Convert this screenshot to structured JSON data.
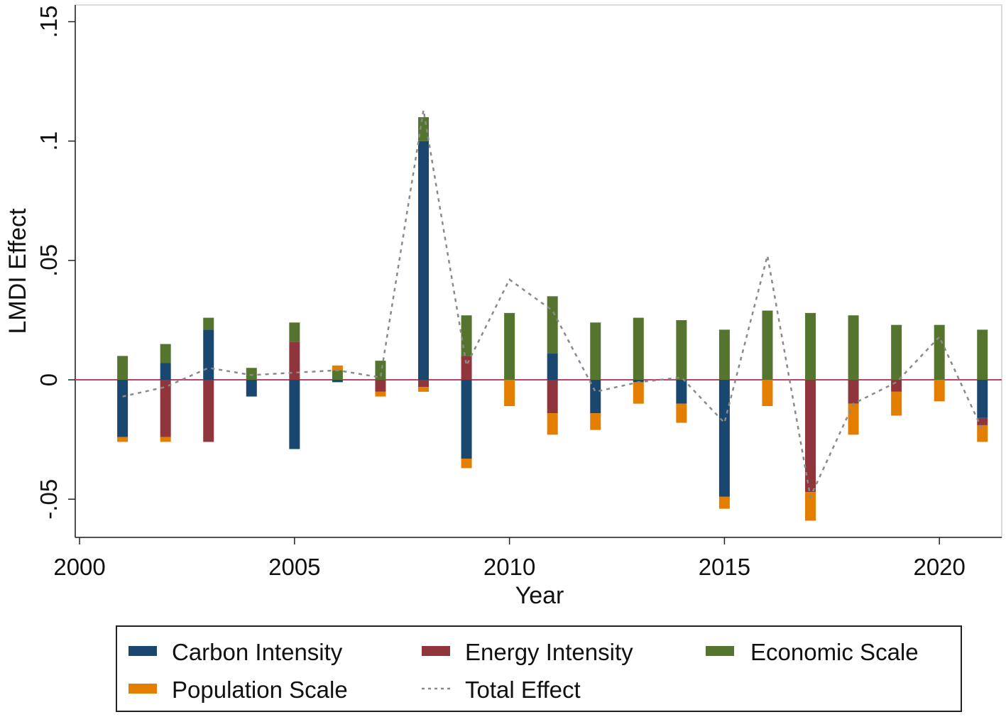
{
  "chart_data": {
    "type": "bar",
    "stacked": true,
    "ylabel": "LMDI Effect",
    "xlabel": "Year",
    "xlim": [
      1999.9,
      2021.45
    ],
    "ylim": [
      -0.066,
      0.157
    ],
    "xticks": [
      2000,
      2005,
      2010,
      2015,
      2020
    ],
    "yticks": [
      {
        "value": -0.05,
        "label": "-.05"
      },
      {
        "value": 0,
        "label": "0"
      },
      {
        "value": 0.05,
        "label": ".05"
      },
      {
        "value": 0.1,
        "label": ".1"
      },
      {
        "value": 0.15,
        "label": ".15"
      }
    ],
    "zero_line": true,
    "years": [
      2001,
      2002,
      2003,
      2004,
      2005,
      2006,
      2007,
      2008,
      2009,
      2010,
      2011,
      2012,
      2013,
      2014,
      2015,
      2016,
      2017,
      2018,
      2019,
      2020,
      2021
    ],
    "series": [
      {
        "key": "ci",
        "name": "Carbon Intensity",
        "color": "#1a476f",
        "values": [
          -0.024,
          0.007,
          0.021,
          -0.007,
          -0.029,
          -0.001,
          0.0,
          0.1,
          -0.033,
          0.0,
          0.011,
          -0.014,
          -0.001,
          -0.01,
          -0.049,
          0.0,
          0.0,
          0.0,
          0.0,
          0.0,
          -0.016
        ]
      },
      {
        "key": "ei",
        "name": "Energy Intensity",
        "color": "#90353b",
        "values": [
          0.0,
          -0.024,
          -0.026,
          0.0,
          0.016,
          0.0,
          -0.005,
          -0.003,
          0.01,
          0.0,
          -0.014,
          0.0,
          0.0,
          0.0,
          0.0,
          0.0,
          -0.047,
          -0.01,
          -0.005,
          0.0,
          -0.003
        ]
      },
      {
        "key": "es",
        "name": "Economic Scale",
        "color": "#55752f",
        "values": [
          0.01,
          0.008,
          0.005,
          0.005,
          0.008,
          0.004,
          0.008,
          0.01,
          0.017,
          0.028,
          0.024,
          0.024,
          0.026,
          0.025,
          0.021,
          0.029,
          0.028,
          0.027,
          0.023,
          0.023,
          0.021
        ]
      },
      {
        "key": "ps",
        "name": "Population Scale",
        "color": "#e37e00",
        "values": [
          -0.002,
          -0.002,
          0.0,
          0.0,
          0.0,
          0.002,
          -0.002,
          -0.002,
          -0.004,
          -0.011,
          -0.009,
          -0.007,
          -0.009,
          -0.008,
          -0.005,
          -0.011,
          -0.012,
          -0.013,
          -0.01,
          -0.009,
          -0.007
        ]
      }
    ],
    "total_effect": {
      "name": "Total Effect",
      "color": "#8a8a8a",
      "values": [
        -0.007,
        -0.003,
        0.005,
        0.002,
        0.003,
        0.004,
        0.001,
        0.113,
        0.006,
        0.042,
        0.029,
        -0.005,
        -0.001,
        0.001,
        -0.018,
        0.052,
        -0.049,
        -0.01,
        -0.001,
        0.018,
        -0.021
      ]
    },
    "legend": {
      "position": "bottom",
      "entries": [
        {
          "label": "Carbon Intensity",
          "kind": "bar",
          "color": "#1a476f"
        },
        {
          "label": "Energy Intensity",
          "kind": "bar",
          "color": "#90353b"
        },
        {
          "label": "Economic Scale",
          "kind": "bar",
          "color": "#55752f"
        },
        {
          "label": "Population Scale",
          "kind": "bar",
          "color": "#e37e00"
        },
        {
          "label": "Total Effect",
          "kind": "dashed-line",
          "color": "#8a8a8a"
        }
      ]
    },
    "zero_line_color": "#c0426b"
  }
}
